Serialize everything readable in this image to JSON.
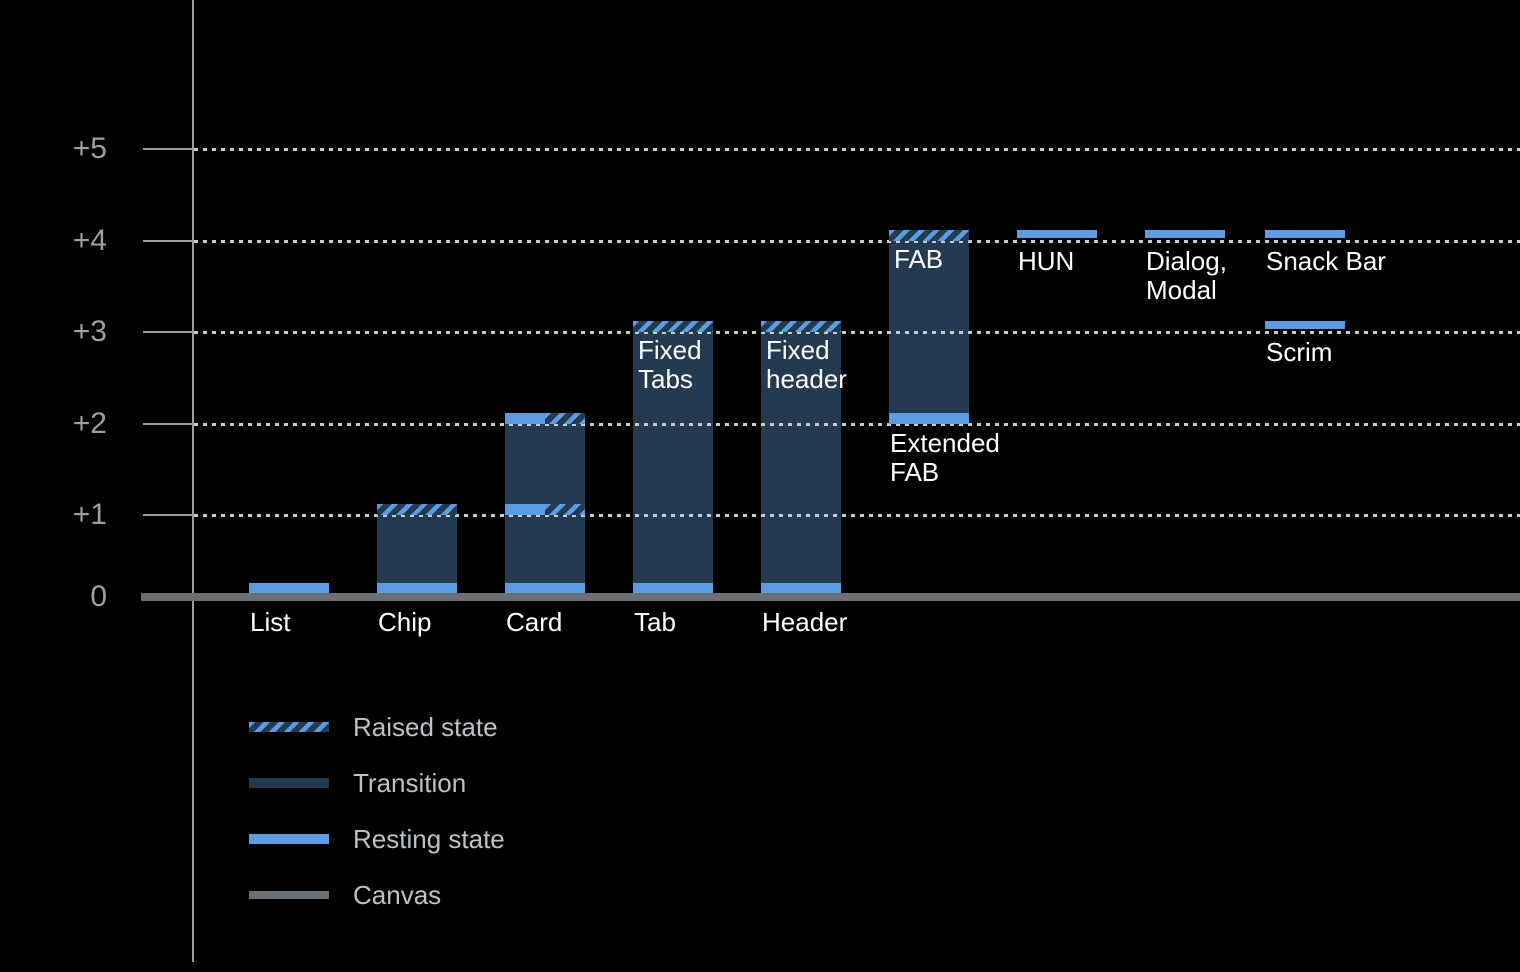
{
  "colors": {
    "background": "#000000",
    "resting_blue": "#5b9ce4",
    "transition_navy": "#243a50",
    "canvas_gray": "#6a6f74",
    "axis_gray": "#9aa0a6",
    "grid_gray": "#c8cbce",
    "legend_text_gray": "#bdc2c7",
    "bar_text_white": "#ffffff"
  },
  "chart_data": {
    "type": "bar",
    "title": "",
    "xlabel": "",
    "ylabel": "",
    "y_axis": {
      "range": [
        0,
        5
      ],
      "grid": "dotted",
      "ticks": [
        {
          "label": "+5",
          "value": 5
        },
        {
          "label": "+4",
          "value": 4
        },
        {
          "label": "+3",
          "value": 3
        },
        {
          "label": "+2",
          "value": 2
        },
        {
          "label": "+1",
          "value": 1
        },
        {
          "label": "0",
          "value": 0
        }
      ]
    },
    "bars": [
      {
        "id": "list",
        "col": 0,
        "axis_label": "List",
        "layers": [
          {
            "kind": "resting",
            "level": 0
          }
        ]
      },
      {
        "id": "chip",
        "col": 1,
        "axis_label": "Chip",
        "layers": [
          {
            "kind": "resting",
            "level": 0
          },
          {
            "kind": "transition",
            "from": 0,
            "to": 1
          },
          {
            "kind": "raised",
            "level": 1
          }
        ]
      },
      {
        "id": "card",
        "col": 2,
        "axis_label": "Card",
        "layers": [
          {
            "kind": "resting",
            "level": 0
          },
          {
            "kind": "transition",
            "from": 0,
            "to": 2
          },
          {
            "kind": "half",
            "level": 1,
            "left": "resting",
            "right": "raised"
          },
          {
            "kind": "half",
            "level": 2,
            "left": "resting",
            "right": "raised"
          }
        ]
      },
      {
        "id": "tab",
        "col": 3,
        "axis_label": "Tab",
        "inner_label": [
          "Fixed",
          "Tabs"
        ],
        "layers": [
          {
            "kind": "resting",
            "level": 0
          },
          {
            "kind": "transition",
            "from": 0,
            "to": 3
          },
          {
            "kind": "raised",
            "level": 3
          }
        ]
      },
      {
        "id": "header",
        "col": 4,
        "axis_label": "Header",
        "inner_label": [
          "Fixed",
          "header"
        ],
        "layers": [
          {
            "kind": "resting",
            "level": 0
          },
          {
            "kind": "transition",
            "from": 0,
            "to": 3
          },
          {
            "kind": "raised",
            "level": 3
          }
        ]
      },
      {
        "id": "fab",
        "col": 5,
        "inner_label": [
          "FAB"
        ],
        "under_label": [
          "Extended",
          "FAB"
        ],
        "layers": [
          {
            "kind": "resting",
            "level": 2
          },
          {
            "kind": "transition",
            "from": 2,
            "to": 4
          },
          {
            "kind": "raised",
            "level": 4
          }
        ]
      },
      {
        "id": "hun",
        "col": 6,
        "float_label": [
          "HUN"
        ],
        "layers": [
          {
            "kind": "float",
            "level": 4
          }
        ]
      },
      {
        "id": "dialog-modal",
        "col": 7,
        "float_label": [
          "Dialog,",
          "Modal"
        ],
        "layers": [
          {
            "kind": "float",
            "level": 4
          }
        ]
      },
      {
        "id": "snack-bar",
        "col": 8,
        "float_label": [
          "Snack Bar"
        ],
        "layers": [
          {
            "kind": "float",
            "level": 4
          }
        ]
      },
      {
        "id": "scrim",
        "col": 8,
        "float_label": [
          "Scrim"
        ],
        "layers": [
          {
            "kind": "float",
            "level": 3
          }
        ]
      }
    ],
    "legend": {
      "position": "bottom-left",
      "items": [
        {
          "id": "raised",
          "label": "Raised state"
        },
        {
          "id": "transition",
          "label": "Transition"
        },
        {
          "id": "resting",
          "label": "Resting state"
        },
        {
          "id": "canvas",
          "label": "Canvas"
        }
      ]
    }
  }
}
